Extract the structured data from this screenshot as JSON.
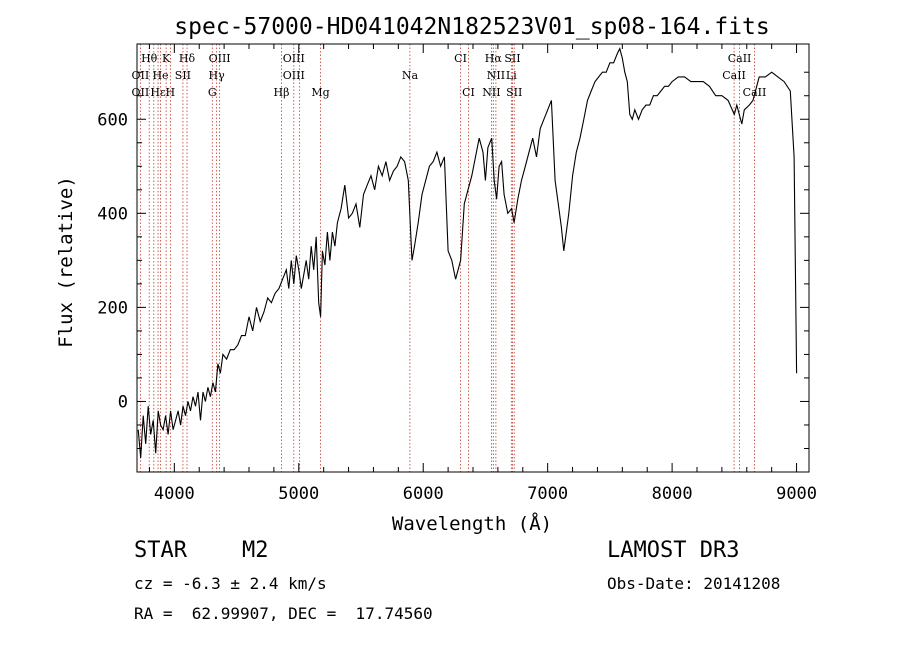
{
  "chart_data": {
    "type": "line",
    "title": "spec-57000-HD041042N182523V01_sp08-164.fits",
    "xlabel": "Wavelength (Å)",
    "ylabel": "Flux (relative)",
    "xlim": [
      3700,
      9100
    ],
    "ylim": [
      -150,
      760
    ],
    "x_ticks": [
      4000,
      5000,
      6000,
      7000,
      8000,
      9000
    ],
    "y_ticks": [
      0,
      200,
      400,
      600
    ],
    "x_tick_labels": [
      "4000",
      "5000",
      "6000",
      "7000",
      "8000",
      "9000"
    ],
    "y_tick_labels": [
      "0",
      "200",
      "400",
      "600"
    ],
    "series": [
      {
        "name": "flux",
        "x": [
          3710,
          3730,
          3750,
          3770,
          3790,
          3810,
          3830,
          3850,
          3870,
          3890,
          3910,
          3930,
          3950,
          3970,
          3990,
          4010,
          4030,
          4050,
          4070,
          4090,
          4110,
          4130,
          4150,
          4170,
          4190,
          4210,
          4230,
          4250,
          4270,
          4290,
          4310,
          4330,
          4350,
          4370,
          4390,
          4420,
          4450,
          4480,
          4510,
          4540,
          4570,
          4600,
          4630,
          4660,
          4690,
          4720,
          4750,
          4780,
          4810,
          4840,
          4870,
          4900,
          4920,
          4940,
          4960,
          4980,
          5000,
          5020,
          5040,
          5060,
          5080,
          5100,
          5120,
          5140,
          5160,
          5175,
          5190,
          5210,
          5230,
          5250,
          5270,
          5290,
          5310,
          5340,
          5370,
          5400,
          5430,
          5460,
          5490,
          5520,
          5550,
          5580,
          5610,
          5640,
          5670,
          5700,
          5730,
          5760,
          5790,
          5820,
          5850,
          5880,
          5895,
          5910,
          5930,
          5960,
          5990,
          6020,
          6050,
          6080,
          6110,
          6140,
          6170,
          6200,
          6230,
          6260,
          6280,
          6300,
          6330,
          6360,
          6390,
          6420,
          6450,
          6480,
          6500,
          6520,
          6550,
          6570,
          6590,
          6610,
          6630,
          6650,
          6680,
          6710,
          6730,
          6760,
          6790,
          6820,
          6850,
          6880,
          6910,
          6940,
          6970,
          7000,
          7030,
          7060,
          7090,
          7110,
          7130,
          7150,
          7170,
          7200,
          7230,
          7260,
          7290,
          7320,
          7350,
          7380,
          7410,
          7440,
          7470,
          7500,
          7530,
          7560,
          7580,
          7600,
          7620,
          7640,
          7660,
          7680,
          7700,
          7730,
          7760,
          7790,
          7820,
          7850,
          7880,
          7910,
          7940,
          7970,
          8000,
          8050,
          8100,
          8150,
          8200,
          8250,
          8300,
          8350,
          8400,
          8450,
          8500,
          8520,
          8540,
          8560,
          8580,
          8620,
          8650,
          8680,
          8700,
          8750,
          8800,
          8850,
          8900,
          8950,
          8980,
          9000
        ],
        "values": [
          -60,
          -120,
          -30,
          -90,
          -10,
          -70,
          -40,
          -110,
          -20,
          -50,
          -60,
          -30,
          -70,
          -20,
          -60,
          -40,
          -20,
          -50,
          -10,
          -30,
          0,
          -20,
          10,
          -10,
          20,
          -40,
          20,
          0,
          30,
          10,
          40,
          20,
          80,
          60,
          100,
          90,
          110,
          110,
          120,
          140,
          140,
          180,
          150,
          200,
          170,
          190,
          220,
          210,
          230,
          240,
          260,
          280,
          240,
          300,
          250,
          310,
          280,
          240,
          270,
          300,
          260,
          330,
          280,
          350,
          210,
          180,
          320,
          290,
          360,
          300,
          360,
          330,
          380,
          410,
          460,
          390,
          400,
          420,
          370,
          440,
          460,
          480,
          450,
          500,
          480,
          510,
          470,
          490,
          500,
          520,
          510,
          470,
          380,
          300,
          330,
          380,
          440,
          470,
          500,
          510,
          530,
          500,
          520,
          320,
          300,
          260,
          280,
          300,
          420,
          450,
          480,
          520,
          560,
          530,
          470,
          540,
          560,
          470,
          430,
          500,
          510,
          440,
          400,
          410,
          380,
          430,
          470,
          500,
          530,
          560,
          520,
          580,
          600,
          620,
          640,
          470,
          410,
          370,
          320,
          360,
          400,
          480,
          530,
          560,
          600,
          640,
          660,
          680,
          690,
          700,
          700,
          720,
          720,
          740,
          750,
          730,
          700,
          680,
          610,
          600,
          620,
          600,
          620,
          630,
          630,
          650,
          650,
          660,
          670,
          670,
          680,
          690,
          690,
          680,
          680,
          680,
          670,
          650,
          650,
          640,
          610,
          630,
          610,
          590,
          620,
          630,
          640,
          670,
          690,
          690,
          700,
          690,
          680,
          660,
          520,
          60
        ]
      }
    ],
    "emission_lines": [
      {
        "label": "Hθ",
        "x": 3798,
        "row": 1
      },
      {
        "label": "K",
        "x": 3934,
        "row": 1
      },
      {
        "label": "Hδ",
        "x": 4102,
        "row": 1
      },
      {
        "label": "OIII",
        "x": 4364,
        "row": 1
      },
      {
        "label": "OIII",
        "x": 4960,
        "row": 1
      },
      {
        "label": "CI",
        "x": 6300,
        "row": 1
      },
      {
        "label": "Hα",
        "x": 6563,
        "row": 1
      },
      {
        "label": "SII",
        "x": 6717,
        "row": 1
      },
      {
        "label": "CaII",
        "x": 8542,
        "row": 1
      },
      {
        "label": "OII",
        "x": 3727,
        "row": 2
      },
      {
        "label": "He",
        "x": 3889,
        "row": 2
      },
      {
        "label": "SII",
        "x": 4069,
        "row": 2
      },
      {
        "label": "Hγ",
        "x": 4340,
        "row": 2
      },
      {
        "label": "OIII",
        "x": 4960,
        "row": 2
      },
      {
        "label": "Na",
        "x": 5893,
        "row": 2
      },
      {
        "label": "NII",
        "x": 6584,
        "row": 2
      },
      {
        "label": "Li",
        "x": 6708,
        "row": 2
      },
      {
        "label": "CaII",
        "x": 8498,
        "row": 2
      },
      {
        "label": "OII",
        "x": 3727,
        "row": 3
      },
      {
        "label": "Hε",
        "x": 3869,
        "row": 3
      },
      {
        "label": "H",
        "x": 3968,
        "row": 3
      },
      {
        "label": "G",
        "x": 4305,
        "row": 3
      },
      {
        "label": "Hβ",
        "x": 4861,
        "row": 3
      },
      {
        "label": "Mg",
        "x": 5175,
        "row": 3
      },
      {
        "label": "CI",
        "x": 6364,
        "row": 3
      },
      {
        "label": "NII",
        "x": 6548,
        "row": 3
      },
      {
        "label": "SII",
        "x": 6731,
        "row": 3
      },
      {
        "label": "CaII",
        "x": 8662,
        "row": 3
      }
    ],
    "line_marker_wavelengths": [
      3727,
      3798,
      3835,
      3869,
      3889,
      3934,
      3968,
      4069,
      4102,
      4305,
      4340,
      4364,
      4861,
      4960,
      5007,
      5175,
      5893,
      6300,
      6364,
      6548,
      6563,
      6584,
      6708,
      6717,
      6731,
      8498,
      8542,
      8662
    ]
  },
  "info": {
    "object_class": "STAR",
    "subclass": "M2",
    "survey": "LAMOST DR3",
    "velocity": "cz = -6.3 ± 2.4 km/s",
    "obs_date": "Obs-Date: 20141208",
    "coords": "RA =  62.99907, DEC =  17.74560"
  }
}
